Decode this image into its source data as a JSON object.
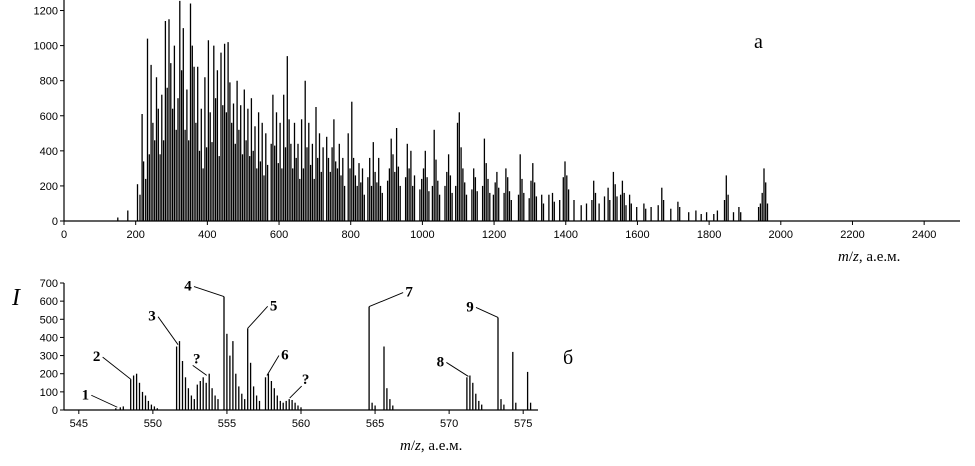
{
  "chart_data": [
    {
      "id": "a",
      "type": "bar",
      "panel_label": "а",
      "title": "",
      "xlabel": "m/z, а.е.м.",
      "xlabel_parts": {
        "m": "m",
        "slash": "/",
        "z": "z",
        "unit": ", а.е.м."
      },
      "ylabel": "",
      "xlim": [
        0,
        2500
      ],
      "ylim": [
        0,
        1260
      ],
      "xticks": [
        0,
        200,
        400,
        600,
        800,
        1000,
        1200,
        1400,
        1600,
        1800,
        2000,
        2200,
        2400
      ],
      "xtick_labels": [
        "0",
        "200",
        "400",
        "600",
        "800",
        "1000",
        "1200",
        "1400",
        "1600",
        "1800",
        "2000",
        "2200",
        "2400"
      ],
      "yticks": [
        0,
        200,
        400,
        600,
        800,
        1000,
        1200
      ],
      "ytick_labels": [
        "0",
        "200",
        "400",
        "600",
        "800",
        "1000",
        "1200"
      ],
      "grid": false,
      "legend": "none",
      "peaks": [
        [
          150,
          20
        ],
        [
          178,
          60
        ],
        [
          205,
          210
        ],
        [
          212,
          150
        ],
        [
          218,
          610
        ],
        [
          222,
          340
        ],
        [
          228,
          240
        ],
        [
          233,
          1040
        ],
        [
          238,
          380
        ],
        [
          243,
          890
        ],
        [
          248,
          560
        ],
        [
          253,
          460
        ],
        [
          258,
          820
        ],
        [
          263,
          640
        ],
        [
          268,
          380
        ],
        [
          273,
          720
        ],
        [
          278,
          460
        ],
        [
          283,
          1140
        ],
        [
          288,
          760
        ],
        [
          293,
          1150
        ],
        [
          298,
          900
        ],
        [
          303,
          640
        ],
        [
          308,
          1000
        ],
        [
          313,
          520
        ],
        [
          318,
          700
        ],
        [
          323,
          1255
        ],
        [
          328,
          860
        ],
        [
          333,
          1100
        ],
        [
          338,
          520
        ],
        [
          343,
          750
        ],
        [
          348,
          460
        ],
        [
          353,
          1240
        ],
        [
          358,
          1000
        ],
        [
          363,
          880
        ],
        [
          368,
          560
        ],
        [
          373,
          880
        ],
        [
          378,
          400
        ],
        [
          383,
          640
        ],
        [
          388,
          300
        ],
        [
          393,
          820
        ],
        [
          398,
          420
        ],
        [
          403,
          1030
        ],
        [
          408,
          620
        ],
        [
          413,
          450
        ],
        [
          418,
          1000
        ],
        [
          423,
          700
        ],
        [
          428,
          860
        ],
        [
          433,
          370
        ],
        [
          438,
          960
        ],
        [
          443,
          660
        ],
        [
          448,
          1010
        ],
        [
          453,
          620
        ],
        [
          458,
          1020
        ],
        [
          463,
          790
        ],
        [
          468,
          560
        ],
        [
          473,
          670
        ],
        [
          478,
          440
        ],
        [
          483,
          800
        ],
        [
          488,
          520
        ],
        [
          493,
          660
        ],
        [
          498,
          380
        ],
        [
          503,
          750
        ],
        [
          508,
          460
        ],
        [
          513,
          640
        ],
        [
          518,
          370
        ],
        [
          523,
          700
        ],
        [
          528,
          400
        ],
        [
          533,
          540
        ],
        [
          538,
          300
        ],
        [
          543,
          620
        ],
        [
          548,
          340
        ],
        [
          553,
          560
        ],
        [
          558,
          260
        ],
        [
          563,
          500
        ],
        [
          568,
          320
        ],
        [
          578,
          440
        ],
        [
          583,
          720
        ],
        [
          588,
          430
        ],
        [
          593,
          620
        ],
        [
          598,
          330
        ],
        [
          603,
          560
        ],
        [
          608,
          300
        ],
        [
          613,
          720
        ],
        [
          618,
          420
        ],
        [
          623,
          940
        ],
        [
          628,
          580
        ],
        [
          633,
          440
        ],
        [
          638,
          300
        ],
        [
          643,
          560
        ],
        [
          648,
          360
        ],
        [
          653,
          440
        ],
        [
          658,
          240
        ],
        [
          663,
          580
        ],
        [
          668,
          300
        ],
        [
          673,
          800
        ],
        [
          678,
          420
        ],
        [
          683,
          560
        ],
        [
          688,
          320
        ],
        [
          693,
          440
        ],
        [
          698,
          240
        ],
        [
          703,
          650
        ],
        [
          708,
          360
        ],
        [
          713,
          500
        ],
        [
          718,
          280
        ],
        [
          723,
          420
        ],
        [
          733,
          480
        ],
        [
          738,
          360
        ],
        [
          743,
          280
        ],
        [
          748,
          420
        ],
        [
          753,
          580
        ],
        [
          758,
          340
        ],
        [
          763,
          300
        ],
        [
          768,
          440
        ],
        [
          773,
          260
        ],
        [
          778,
          360
        ],
        [
          783,
          200
        ],
        [
          793,
          500
        ],
        [
          798,
          300
        ],
        [
          803,
          680
        ],
        [
          808,
          360
        ],
        [
          813,
          260
        ],
        [
          818,
          200
        ],
        [
          823,
          330
        ],
        [
          828,
          220
        ],
        [
          833,
          300
        ],
        [
          838,
          150
        ],
        [
          848,
          250
        ],
        [
          853,
          360
        ],
        [
          858,
          200
        ],
        [
          863,
          450
        ],
        [
          868,
          280
        ],
        [
          873,
          220
        ],
        [
          878,
          360
        ],
        [
          883,
          200
        ],
        [
          888,
          160
        ],
        [
          903,
          230
        ],
        [
          908,
          300
        ],
        [
          913,
          470
        ],
        [
          918,
          380
        ],
        [
          923,
          280
        ],
        [
          928,
          530
        ],
        [
          933,
          310
        ],
        [
          938,
          200
        ],
        [
          953,
          250
        ],
        [
          958,
          440
        ],
        [
          963,
          300
        ],
        [
          968,
          400
        ],
        [
          973,
          200
        ],
        [
          978,
          260
        ],
        [
          993,
          180
        ],
        [
          998,
          240
        ],
        [
          1003,
          300
        ],
        [
          1008,
          400
        ],
        [
          1013,
          250
        ],
        [
          1018,
          170
        ],
        [
          1028,
          200
        ],
        [
          1033,
          520
        ],
        [
          1038,
          350
        ],
        [
          1043,
          230
        ],
        [
          1048,
          150
        ],
        [
          1063,
          200
        ],
        [
          1068,
          280
        ],
        [
          1073,
          380
        ],
        [
          1078,
          260
        ],
        [
          1083,
          160
        ],
        [
          1093,
          200
        ],
        [
          1098,
          560
        ],
        [
          1103,
          620
        ],
        [
          1108,
          420
        ],
        [
          1113,
          300
        ],
        [
          1118,
          220
        ],
        [
          1123,
          150
        ],
        [
          1138,
          180
        ],
        [
          1143,
          300
        ],
        [
          1148,
          250
        ],
        [
          1153,
          170
        ],
        [
          1168,
          200
        ],
        [
          1173,
          470
        ],
        [
          1178,
          330
        ],
        [
          1183,
          240
        ],
        [
          1188,
          160
        ],
        [
          1198,
          150
        ],
        [
          1203,
          220
        ],
        [
          1208,
          280
        ],
        [
          1213,
          190
        ],
        [
          1228,
          160
        ],
        [
          1233,
          300
        ],
        [
          1238,
          250
        ],
        [
          1243,
          170
        ],
        [
          1248,
          120
        ],
        [
          1268,
          150
        ],
        [
          1273,
          380
        ],
        [
          1278,
          240
        ],
        [
          1283,
          160
        ],
        [
          1298,
          130
        ],
        [
          1303,
          230
        ],
        [
          1308,
          330
        ],
        [
          1313,
          220
        ],
        [
          1318,
          140
        ],
        [
          1333,
          150
        ],
        [
          1338,
          100
        ],
        [
          1353,
          150
        ],
        [
          1363,
          160
        ],
        [
          1368,
          110
        ],
        [
          1383,
          120
        ],
        [
          1393,
          250
        ],
        [
          1398,
          340
        ],
        [
          1403,
          260
        ],
        [
          1408,
          180
        ],
        [
          1423,
          120
        ],
        [
          1443,
          90
        ],
        [
          1458,
          100
        ],
        [
          1473,
          120
        ],
        [
          1478,
          230
        ],
        [
          1483,
          160
        ],
        [
          1493,
          100
        ],
        [
          1508,
          140
        ],
        [
          1518,
          190
        ],
        [
          1523,
          120
        ],
        [
          1533,
          280
        ],
        [
          1538,
          210
        ],
        [
          1543,
          140
        ],
        [
          1553,
          150
        ],
        [
          1558,
          230
        ],
        [
          1563,
          160
        ],
        [
          1568,
          90
        ],
        [
          1578,
          150
        ],
        [
          1583,
          100
        ],
        [
          1598,
          80
        ],
        [
          1618,
          100
        ],
        [
          1623,
          70
        ],
        [
          1638,
          80
        ],
        [
          1658,
          90
        ],
        [
          1668,
          190
        ],
        [
          1673,
          120
        ],
        [
          1693,
          70
        ],
        [
          1713,
          110
        ],
        [
          1718,
          80
        ],
        [
          1743,
          50
        ],
        [
          1763,
          60
        ],
        [
          1778,
          40
        ],
        [
          1793,
          50
        ],
        [
          1813,
          40
        ],
        [
          1823,
          60
        ],
        [
          1843,
          120
        ],
        [
          1848,
          260
        ],
        [
          1853,
          150
        ],
        [
          1868,
          50
        ],
        [
          1883,
          80
        ],
        [
          1888,
          50
        ],
        [
          1938,
          80
        ],
        [
          1943,
          100
        ],
        [
          1948,
          160
        ],
        [
          1953,
          300
        ],
        [
          1958,
          220
        ],
        [
          1963,
          100
        ]
      ]
    },
    {
      "id": "b",
      "type": "bar",
      "panel_label": "б",
      "title": "",
      "xlabel": "m/z, а.е.м.",
      "xlabel_parts": {
        "m": "m",
        "slash": "/",
        "z": "z",
        "unit": ", а.е.м."
      },
      "ylabel": "I",
      "xlim": [
        544,
        576
      ],
      "ylim": [
        0,
        700
      ],
      "xticks": [
        545,
        550,
        555,
        560,
        565,
        570,
        575
      ],
      "xtick_labels": [
        "545",
        "550",
        "555",
        "560",
        "565",
        "570",
        "575"
      ],
      "yticks": [
        0,
        100,
        200,
        300,
        400,
        500,
        600,
        700
      ],
      "ytick_labels": [
        "0",
        "100",
        "200",
        "300",
        "400",
        "500",
        "600",
        "700"
      ],
      "grid": false,
      "legend": "none",
      "peaks": [
        [
          547.5,
          10
        ],
        [
          547.8,
          15
        ],
        [
          548.0,
          20
        ],
        [
          548.5,
          170
        ],
        [
          548.7,
          190
        ],
        [
          548.9,
          200
        ],
        [
          549.1,
          150
        ],
        [
          549.3,
          100
        ],
        [
          549.5,
          80
        ],
        [
          549.7,
          50
        ],
        [
          549.9,
          30
        ],
        [
          550.1,
          20
        ],
        [
          550.3,
          10
        ],
        [
          551.6,
          350
        ],
        [
          551.8,
          380
        ],
        [
          552.0,
          270
        ],
        [
          552.2,
          180
        ],
        [
          552.4,
          120
        ],
        [
          552.6,
          80
        ],
        [
          552.8,
          60
        ],
        [
          553.0,
          140
        ],
        [
          553.2,
          160
        ],
        [
          553.4,
          180
        ],
        [
          553.6,
          150
        ],
        [
          553.8,
          200
        ],
        [
          554.0,
          120
        ],
        [
          554.2,
          80
        ],
        [
          554.4,
          60
        ],
        [
          554.8,
          625
        ],
        [
          555.0,
          420
        ],
        [
          555.2,
          300
        ],
        [
          555.4,
          380
        ],
        [
          555.6,
          200
        ],
        [
          555.8,
          130
        ],
        [
          556.0,
          90
        ],
        [
          556.2,
          60
        ],
        [
          556.4,
          450
        ],
        [
          556.6,
          260
        ],
        [
          556.8,
          130
        ],
        [
          557.0,
          80
        ],
        [
          557.2,
          50
        ],
        [
          557.6,
          180
        ],
        [
          557.8,
          200
        ],
        [
          558.0,
          160
        ],
        [
          558.2,
          120
        ],
        [
          558.4,
          80
        ],
        [
          558.6,
          50
        ],
        [
          558.8,
          40
        ],
        [
          559.0,
          50
        ],
        [
          559.2,
          60
        ],
        [
          559.4,
          55
        ],
        [
          559.6,
          40
        ],
        [
          559.8,
          25
        ],
        [
          560.0,
          15
        ],
        [
          564.6,
          570
        ],
        [
          564.8,
          40
        ],
        [
          565.0,
          25
        ],
        [
          565.6,
          350
        ],
        [
          565.8,
          120
        ],
        [
          566.0,
          60
        ],
        [
          566.2,
          25
        ],
        [
          571.2,
          180
        ],
        [
          571.4,
          190
        ],
        [
          571.6,
          150
        ],
        [
          571.8,
          90
        ],
        [
          572.0,
          50
        ],
        [
          572.2,
          30
        ],
        [
          573.3,
          510
        ],
        [
          573.5,
          60
        ],
        [
          573.7,
          30
        ],
        [
          574.3,
          320
        ],
        [
          574.5,
          40
        ],
        [
          575.3,
          210
        ],
        [
          575.5,
          40
        ]
      ],
      "annotations": [
        {
          "text": "1",
          "x": 547.6,
          "y": 15
        },
        {
          "text": "2",
          "x": 548.5,
          "y": 170
        },
        {
          "text": "3",
          "x": 551.7,
          "y": 360
        },
        {
          "text": "?",
          "x": 553.5,
          "y": 180
        },
        {
          "text": "4",
          "x": 554.8,
          "y": 625
        },
        {
          "text": "5",
          "x": 556.4,
          "y": 450
        },
        {
          "text": "6",
          "x": 557.7,
          "y": 190
        },
        {
          "text": "?",
          "x": 559.1,
          "y": 55
        },
        {
          "text": "7",
          "x": 564.6,
          "y": 570
        },
        {
          "text": "8",
          "x": 571.3,
          "y": 185
        },
        {
          "text": "9",
          "x": 573.3,
          "y": 510
        }
      ]
    }
  ]
}
